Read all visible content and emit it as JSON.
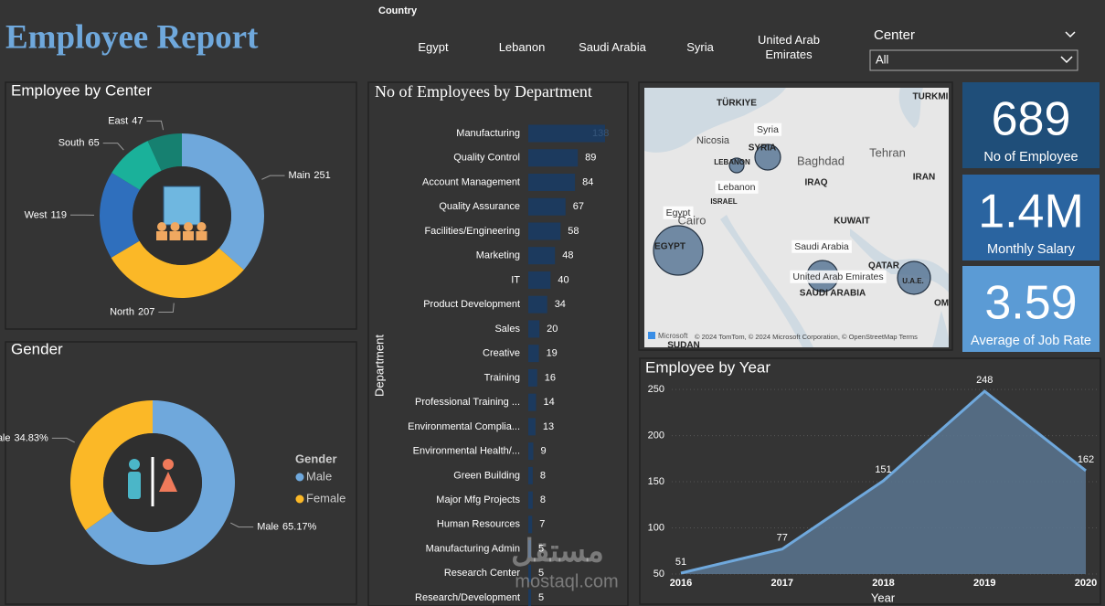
{
  "header": {
    "title": "Employee Report"
  },
  "country_slicer": {
    "label": "Country",
    "items": [
      "Egypt",
      "Lebanon",
      "Saudi Arabia",
      "Syria",
      "United Arab Emirates"
    ]
  },
  "center_slicer": {
    "label": "Center",
    "value": "All"
  },
  "kpis": [
    {
      "value": "689",
      "label": "No of Employee",
      "color": "#1f4e79"
    },
    {
      "value": "1.4M",
      "label": "Monthly Salary",
      "color": "#2a64a0"
    },
    {
      "value": "3.59",
      "label": "Average of Job Rate",
      "color": "#5b9bd5"
    }
  ],
  "map": {
    "labels": [
      "TÜRKIYE",
      "TURKMI",
      "Nicosia",
      "Syria",
      "SYRIA",
      "LEBANON",
      "Lebanon",
      "ISRAEL",
      "Baghdad",
      "IRAQ",
      "Tehran",
      "IRAN",
      "KUWAIT",
      "Egypt",
      "Cairo",
      "EGYPT",
      "Saudi Arabia",
      "QATAR",
      "United Arab Emirates",
      "SAUDI ARABIA",
      "U.A.E.",
      "OM",
      "SUDAN"
    ],
    "brand": "Microsoft",
    "attribution": "© 2024 TomTom, © 2024 Microsoft Corporation, © OpenStreetMap  Terms"
  },
  "watermark": {
    "arabic": "مستقل",
    "latin": "mostaql.com"
  },
  "chart_data": [
    {
      "type": "donut",
      "title": "Employee by Center",
      "categories": [
        "Main",
        "North",
        "West",
        "South",
        "East"
      ],
      "values": [
        251,
        207,
        119,
        65,
        47
      ],
      "colors": [
        "#6fa8dc",
        "#fbb827",
        "#2f6fbd",
        "#1ab19a",
        "#168070"
      ]
    },
    {
      "type": "donut",
      "title": "Gender",
      "categories": [
        "Male",
        "Female"
      ],
      "values": [
        65.17,
        34.83
      ],
      "value_labels": [
        "65.17%",
        "34.83%"
      ],
      "colors": [
        "#6fa8dc",
        "#fbb827"
      ],
      "legend": {
        "title": "Gender",
        "position": "right"
      }
    },
    {
      "type": "hbar",
      "title": "No of Employees by Department",
      "y_label": "Department",
      "color": "#1c3a5e",
      "categories": [
        "Manufacturing",
        "Quality Control",
        "Account Management",
        "Quality Assurance",
        "Facilities/Engineering",
        "Marketing",
        "IT",
        "Product Development",
        "Sales",
        "Creative",
        "Training",
        "Professional Training ...",
        "Environmental Complia...",
        "Environmental Health/...",
        "Green Building",
        "Major Mfg Projects",
        "Human Resources",
        "Manufacturing Admin",
        "Research Center",
        "Research/Development"
      ],
      "values": [
        138,
        89,
        84,
        67,
        58,
        48,
        40,
        34,
        20,
        19,
        16,
        14,
        13,
        9,
        8,
        8,
        7,
        5,
        5,
        5
      ]
    },
    {
      "type": "area",
      "title": "Employee by Year",
      "x_label": "Year",
      "color": "#6fa8dc",
      "fill": "#5a7591",
      "x": [
        2016,
        2017,
        2018,
        2019,
        2020
      ],
      "values": [
        51,
        77,
        151,
        248,
        162
      ],
      "xlim": [
        2016,
        2020
      ],
      "xticks": [
        2016,
        2017,
        2018,
        2019,
        2020
      ],
      "ylim": [
        50,
        260
      ],
      "yticks": [
        50,
        100,
        150,
        200,
        250
      ],
      "grid": true
    }
  ]
}
